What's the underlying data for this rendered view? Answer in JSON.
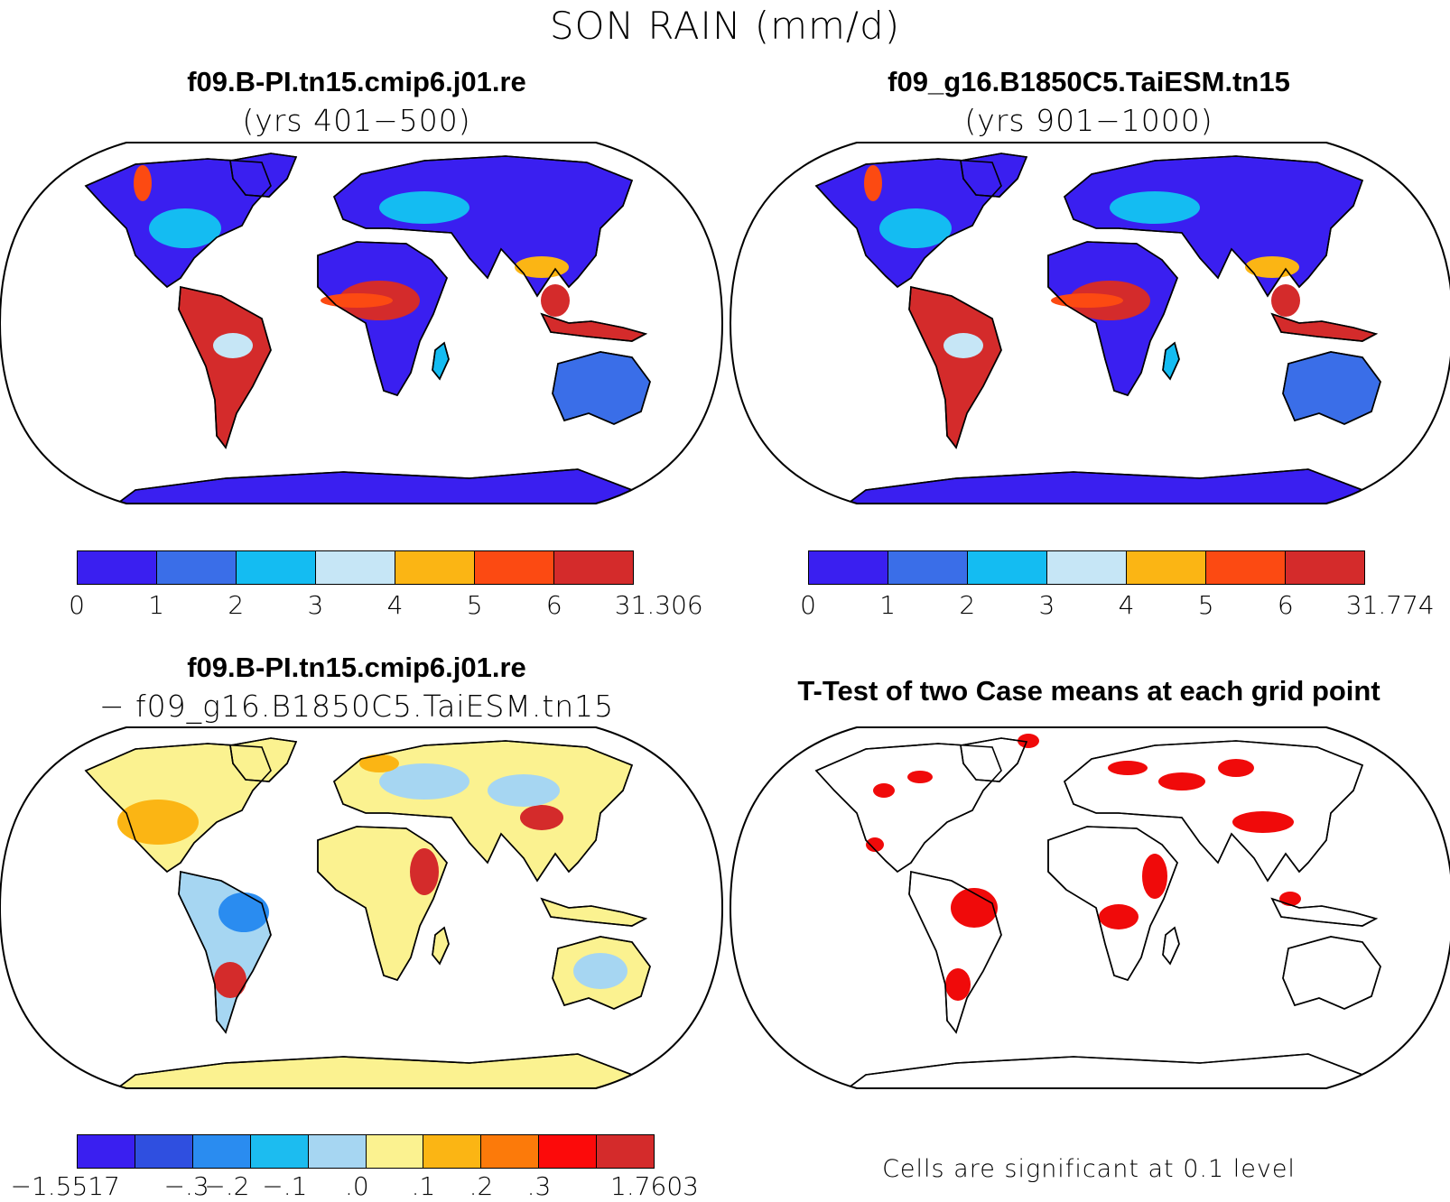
{
  "figure": {
    "title": "SON RAIN (mm/d)"
  },
  "panels": [
    {
      "title": "f09.B-PI.tn15.cmip6.j01.re",
      "subtitle": "(yrs 401−500)",
      "colorbar": {
        "colors": [
          "#3a1ff0",
          "#3a6ee8",
          "#14bcf2",
          "#c6e6f6",
          "#fbb514",
          "#fc4a12",
          "#d42b2b"
        ],
        "labels": [
          "0",
          "1",
          "2",
          "3",
          "4",
          "5",
          "6",
          "31.306"
        ]
      }
    },
    {
      "title": "f09_g16.B1850C5.TaiESM.tn15",
      "subtitle": "(yrs 901−1000)",
      "colorbar": {
        "colors": [
          "#3a1ff0",
          "#3a6ee8",
          "#14bcf2",
          "#c6e6f6",
          "#fbb514",
          "#fc4a12",
          "#d42b2b"
        ],
        "labels": [
          "0",
          "1",
          "2",
          "3",
          "4",
          "5",
          "6",
          "31.774"
        ]
      }
    },
    {
      "title": "f09.B-PI.tn15.cmip6.j01.re",
      "subtitle": "− f09_g16.B1850C5.TaiESM.tn15",
      "colorbar": {
        "colors": [
          "#3a1ff0",
          "#2f4fe0",
          "#2a8cf0",
          "#1cbcf0",
          "#a6d6f2",
          "#fbf290",
          "#fbb514",
          "#fc7a0a",
          "#fc0a0a",
          "#d42b2b"
        ],
        "labels": [
          "−1.5517",
          "−.3",
          "−.2",
          "−.1",
          ".0",
          ".1",
          ".2",
          ".3",
          "1.7603"
        ]
      }
    },
    {
      "title": "T-Test of two Case means at each grid point",
      "note": "Cells are significant at 0.1 level"
    }
  ]
}
